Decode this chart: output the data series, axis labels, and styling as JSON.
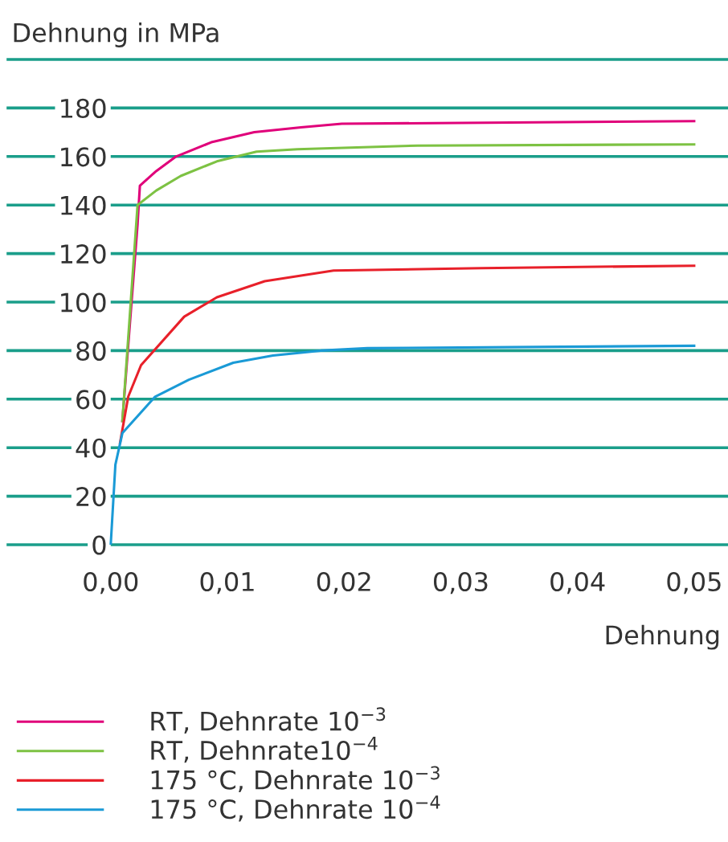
{
  "chart_data": {
    "type": "line",
    "ylabel": "Dehnung in MPa",
    "xlabel": "Dehnung",
    "xlim": [
      -0.0088,
      0.0529
    ],
    "xticks": [
      {
        "value": 0,
        "label": "0,00"
      },
      {
        "value": 0.01,
        "label": "0,01"
      },
      {
        "value": 0.02,
        "label": "0,02"
      },
      {
        "value": 0.03,
        "label": "0,03"
      },
      {
        "value": 0.04,
        "label": "0,04"
      },
      {
        "value": 0.05,
        "label": "0,05"
      }
    ],
    "ylim": [
      0,
      200
    ],
    "yticks": [
      0,
      20,
      40,
      60,
      80,
      100,
      120,
      140,
      160,
      180,
      {
        "value": 200,
        "label": null
      }
    ],
    "grid": "y",
    "legend": "bottom left",
    "line_style": "solid",
    "marker": "none",
    "series": [
      {
        "name": "RT, Dehnrate 10$^{−3}$",
        "color": "#e0007a",
        "x": [
          0.001,
          0.0023,
          0.0025,
          0.0039,
          0.0056,
          0.0087,
          0.0123,
          0.0163,
          0.0198,
          0.05
        ],
        "values": [
          51,
          132,
          148,
          154,
          160,
          166,
          170,
          172,
          173.5,
          174.6
        ]
      },
      {
        "name": "RT, Dehnrate10$^{−4}$",
        "color": "#7dc243",
        "x": [
          0.001,
          0.0023,
          0.0039,
          0.006,
          0.0091,
          0.0125,
          0.016,
          0.0263,
          0.05
        ],
        "values": [
          51,
          140,
          146,
          152,
          158,
          162,
          163,
          164.5,
          165
        ]
      },
      {
        "name": "175 °C, Dehnrate 10$^{−3}$",
        "color": "#e8202a",
        "x": [
          0.0008,
          0.0015,
          0.0026,
          0.0063,
          0.0091,
          0.0132,
          0.0191,
          0.0318,
          0.05
        ],
        "values": [
          42,
          61,
          74,
          94,
          102,
          108.6,
          113,
          114,
          115
        ]
      },
      {
        "name": "175 °C, Dehnrate 10$^{−4}$",
        "color": "#1a9ad6",
        "x": [
          0,
          0.0004,
          0.001,
          0.0038,
          0.0067,
          0.0105,
          0.0139,
          0.018,
          0.022,
          0.05
        ],
        "values": [
          0,
          33,
          46,
          61,
          68,
          75,
          78,
          80,
          81,
          82
        ]
      }
    ]
  }
}
